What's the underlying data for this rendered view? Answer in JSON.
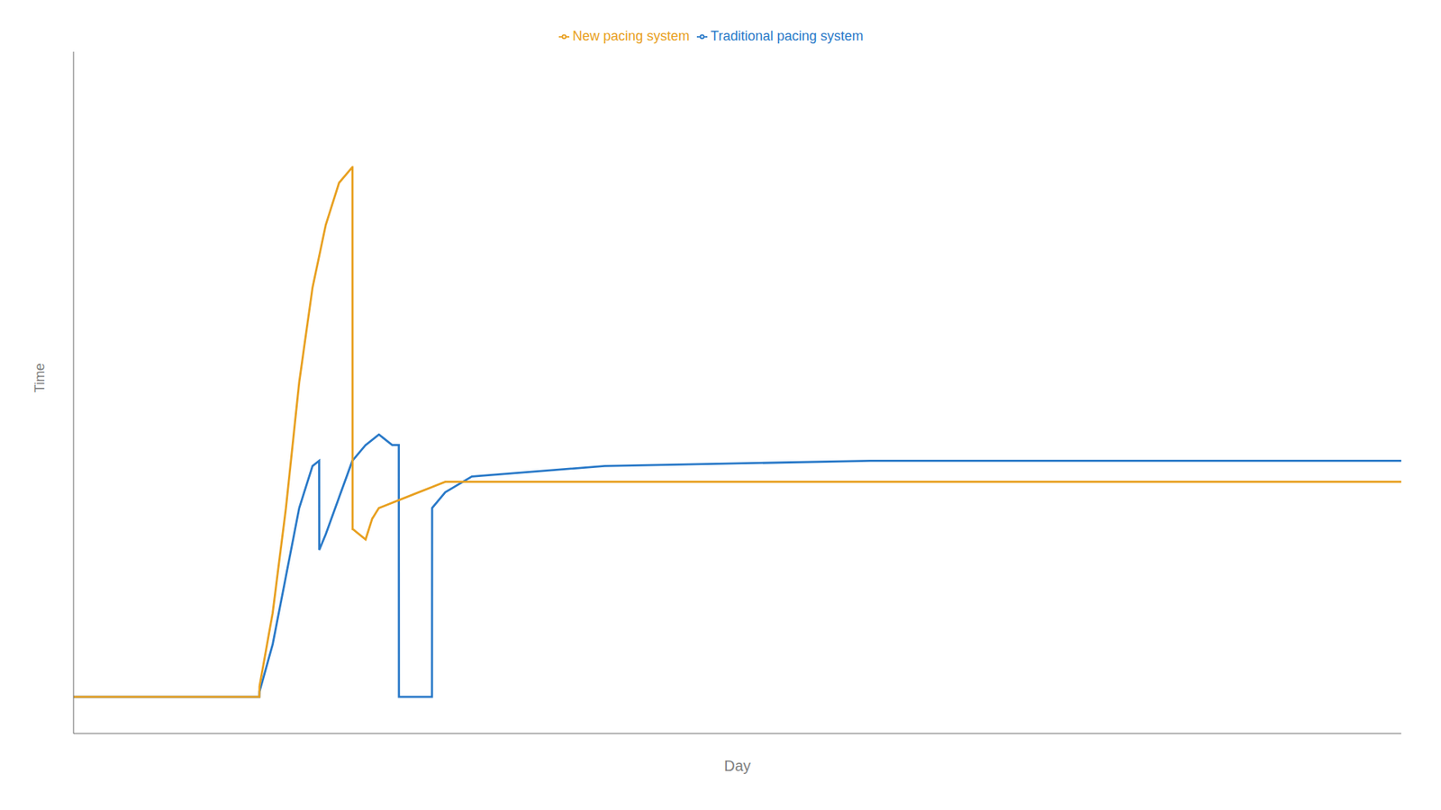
{
  "chart_data": {
    "type": "line",
    "xlabel": "Day",
    "ylabel": "Time",
    "xlim": [
      0,
      100
    ],
    "ylim": [
      -0.05,
      1.25
    ],
    "tick_labels": false,
    "grid": false,
    "legend": "top",
    "series": [
      {
        "name": "Traditional pacing system",
        "color": "#2979c8",
        "x": [
          0,
          14,
          14.01,
          15,
          16,
          17,
          18,
          18.5,
          18.51,
          19,
          20,
          21,
          22,
          22.01,
          23,
          23.01,
          24,
          24.5,
          24.51,
          24.6,
          24.61,
          25,
          26,
          27,
          27.01,
          28,
          30,
          40,
          60,
          100
        ],
        "values": [
          0.02,
          0.02,
          0.03,
          0.12,
          0.25,
          0.38,
          0.46,
          0.47,
          0.3,
          0.33,
          0.4,
          0.47,
          0.5,
          0.5,
          0.52,
          0.52,
          0.5,
          0.5,
          0.02,
          0.02,
          0.02,
          0.02,
          0.02,
          0.02,
          0.38,
          0.41,
          0.44,
          0.46,
          0.47,
          0.47
        ]
      },
      {
        "name": "New pacing system",
        "color": "#e8a020",
        "x": [
          0,
          14,
          14.01,
          15,
          16,
          17,
          18,
          19,
          20,
          21,
          21.01,
          21.02,
          21.03,
          22,
          22.5,
          22.51,
          23,
          24,
          24.01,
          25,
          26,
          27,
          27.01,
          28,
          30,
          40,
          60,
          100
        ],
        "values": [
          0.02,
          0.02,
          0.04,
          0.18,
          0.38,
          0.62,
          0.8,
          0.92,
          1.0,
          1.03,
          1.03,
          0.34,
          0.34,
          0.32,
          0.36,
          0.36,
          0.38,
          0.39,
          0.39,
          0.4,
          0.41,
          0.42,
          0.42,
          0.43,
          0.43,
          0.43,
          0.43,
          0.43
        ]
      }
    ]
  }
}
